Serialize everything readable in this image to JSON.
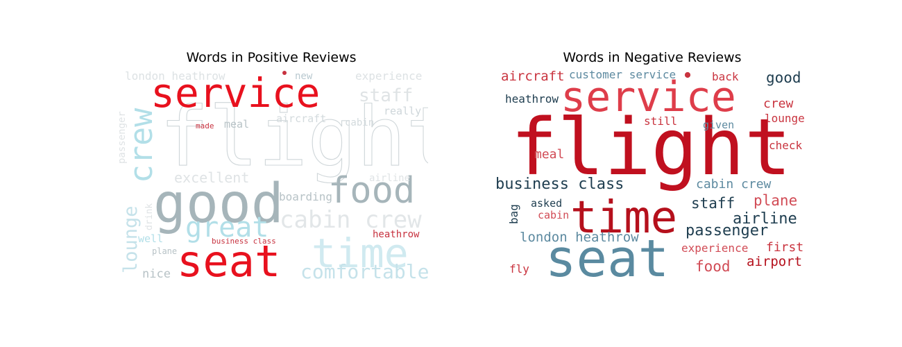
{
  "chart_data": [
    {
      "type": "wordcloud",
      "title": "Words in Positive Reviews",
      "words": [
        {
          "text": "flight",
          "color": "#d8dde0",
          "outline": true
        },
        {
          "text": "service",
          "color": "#e8111e"
        },
        {
          "text": "good",
          "color": "#a6b5ba"
        },
        {
          "text": "food",
          "color": "#a6b5ba"
        },
        {
          "text": "seat",
          "color": "#e8111e"
        },
        {
          "text": "time",
          "color": "#d0eaf0"
        },
        {
          "text": "crew",
          "color": "#b2dfe8"
        },
        {
          "text": "great",
          "color": "#b2dfe8"
        },
        {
          "text": "cabin crew",
          "color": "#e2e6e8"
        },
        {
          "text": "comfortable",
          "color": "#c5e2ea"
        },
        {
          "text": "lounge",
          "color": "#c5e2ea"
        },
        {
          "text": "staff",
          "color": "#dfe3e5"
        },
        {
          "text": "excellent",
          "color": "#dfe3e5"
        },
        {
          "text": "london heathrow",
          "color": "#dde2e4"
        },
        {
          "text": "experience",
          "color": "#dde2e4"
        },
        {
          "text": "new",
          "color": "#b9c9d0"
        },
        {
          "text": "really",
          "color": "#ced6da"
        },
        {
          "text": "aircraft",
          "color": "#d3dadd"
        },
        {
          "text": "cabin",
          "color": "#d3dadd"
        },
        {
          "text": "meal",
          "color": "#b7c2c6"
        },
        {
          "text": "made",
          "color": "#c7323f"
        },
        {
          "text": "passenger",
          "color": "#dfe3e5"
        },
        {
          "text": "airline",
          "color": "#dfe3e5"
        },
        {
          "text": "boarding",
          "color": "#b7c2c6"
        },
        {
          "text": "heathrow",
          "color": "#c7323f"
        },
        {
          "text": "drink",
          "color": "#dfe3e5"
        },
        {
          "text": "well",
          "color": "#b2dfe8"
        },
        {
          "text": "business class",
          "color": "#c7323f"
        },
        {
          "text": "plane",
          "color": "#b7c2c6"
        },
        {
          "text": "nice",
          "color": "#b7c2c6"
        },
        {
          "text": "",
          "color": "#c7323f"
        }
      ]
    },
    {
      "type": "wordcloud",
      "title": "Words in Negative Reviews",
      "words": [
        {
          "text": "flight",
          "color": "#c0101f"
        },
        {
          "text": "service",
          "color": "#de3d4a"
        },
        {
          "text": "time",
          "color": "#b5101c"
        },
        {
          "text": "seat",
          "color": "#5a8aa0"
        },
        {
          "text": "business class",
          "color": "#1e3d4f"
        },
        {
          "text": "aircraft",
          "color": "#c9343f"
        },
        {
          "text": "customer service",
          "color": "#5d8aa0"
        },
        {
          "text": "back",
          "color": "#c9343f"
        },
        {
          "text": "good",
          "color": "#1e3d4f"
        },
        {
          "text": "heathrow",
          "color": "#1e3d4f"
        },
        {
          "text": "crew",
          "color": "#c9343f"
        },
        {
          "text": "lounge",
          "color": "#c9343f"
        },
        {
          "text": "still",
          "color": "#c9343f"
        },
        {
          "text": "given",
          "color": "#5d8aa0"
        },
        {
          "text": "meal",
          "color": "#d14b55"
        },
        {
          "text": "check",
          "color": "#c9343f"
        },
        {
          "text": "cabin crew",
          "color": "#5d8aa0"
        },
        {
          "text": "staff",
          "color": "#1e3d4f"
        },
        {
          "text": "plane",
          "color": "#d14b55"
        },
        {
          "text": "airline",
          "color": "#1e3d4f"
        },
        {
          "text": "bag",
          "color": "#1e3d4f"
        },
        {
          "text": "asked",
          "color": "#1e3d4f"
        },
        {
          "text": "cabin",
          "color": "#d14b55"
        },
        {
          "text": "passenger",
          "color": "#1e3d4f"
        },
        {
          "text": "london heathrow",
          "color": "#5d8aa0"
        },
        {
          "text": "experience",
          "color": "#d14b55"
        },
        {
          "text": "first",
          "color": "#c9343f"
        },
        {
          "text": "food",
          "color": "#d14b55"
        },
        {
          "text": "airport",
          "color": "#b5101c"
        },
        {
          "text": "fly",
          "color": "#c9343f"
        },
        {
          "text": "",
          "color": "#c9343f"
        }
      ]
    }
  ]
}
